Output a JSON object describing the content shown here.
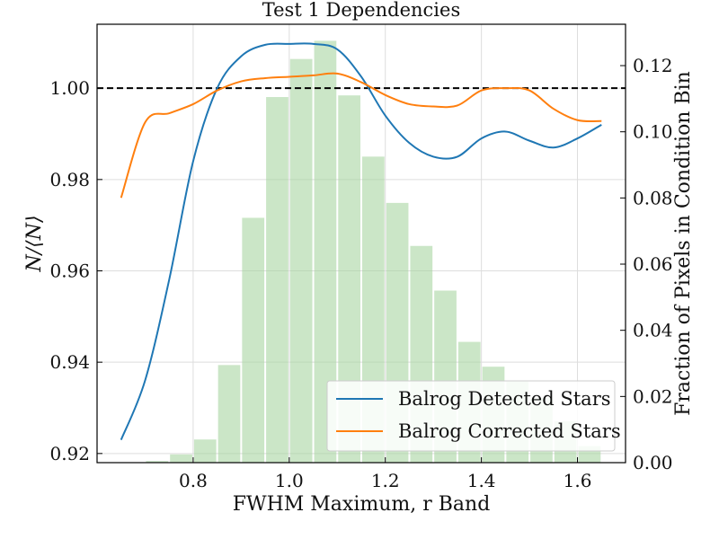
{
  "chart_data": {
    "type": "line",
    "title": "Test 1 Dependencies",
    "xlabel": "FWHM Maximum, r Band",
    "ylabel": "N/⟨N⟩",
    "ylabel2": "Fraction of Pixels in Condition Bin",
    "xlim": [
      0.6,
      1.7
    ],
    "ylim": [
      0.918,
      1.014
    ],
    "ylim2": [
      0.0,
      0.1325
    ],
    "x_ticks": [
      "0.8",
      "1.0",
      "1.2",
      "1.4",
      "1.6"
    ],
    "y_ticks": [
      "0.92",
      "0.94",
      "0.96",
      "0.98",
      "1.00"
    ],
    "y2_ticks": [
      "0.00",
      "0.02",
      "0.04",
      "0.06",
      "0.08",
      "0.10",
      "0.12"
    ],
    "grid": true,
    "legend_position": "lower-right",
    "reference_line": {
      "y": 1.0,
      "style": "dashed",
      "color": "#000000"
    },
    "histogram": {
      "color": "#a8d5a2",
      "bin_edges": [
        0.65,
        0.7,
        0.75,
        0.8,
        0.85,
        0.9,
        0.95,
        1.0,
        1.05,
        1.1,
        1.15,
        1.2,
        1.25,
        1.3,
        1.35,
        1.4,
        1.45,
        1.5,
        1.55,
        1.6,
        1.65
      ],
      "fractions": [
        0.0,
        0.0005,
        0.0025,
        0.007,
        0.0295,
        0.074,
        0.1105,
        0.122,
        0.1275,
        0.111,
        0.0925,
        0.0785,
        0.0655,
        0.052,
        0.0365,
        0.029,
        0.0245,
        0.0195,
        0.0125,
        0.005
      ]
    },
    "series": [
      {
        "name": "Balrog Detected Stars",
        "color": "#1f77b4",
        "x": [
          0.65,
          0.7,
          0.75,
          0.8,
          0.85,
          0.9,
          0.95,
          1.0,
          1.05,
          1.1,
          1.15,
          1.2,
          1.25,
          1.3,
          1.35,
          1.4,
          1.45,
          1.5,
          1.55,
          1.6,
          1.65
        ],
        "y": [
          0.923,
          0.936,
          0.958,
          0.984,
          1.0,
          1.007,
          1.0095,
          1.0097,
          1.0097,
          1.0085,
          1.0025,
          0.994,
          0.988,
          0.985,
          0.985,
          0.989,
          0.9905,
          0.9885,
          0.987,
          0.989,
          0.992
        ]
      },
      {
        "name": "Balrog Corrected Stars",
        "color": "#ff7f0e",
        "x": [
          0.65,
          0.7,
          0.75,
          0.8,
          0.85,
          0.9,
          0.95,
          1.0,
          1.05,
          1.1,
          1.15,
          1.2,
          1.25,
          1.3,
          1.35,
          1.4,
          1.45,
          1.5,
          1.55,
          1.6,
          1.65
        ],
        "y": [
          0.976,
          0.9925,
          0.9945,
          0.9965,
          0.9995,
          1.0015,
          1.0022,
          1.0025,
          1.0028,
          1.0032,
          1.0013,
          0.9985,
          0.9965,
          0.996,
          0.9962,
          0.9995,
          1.0,
          0.9995,
          0.9955,
          0.993,
          0.9928
        ]
      }
    ]
  }
}
